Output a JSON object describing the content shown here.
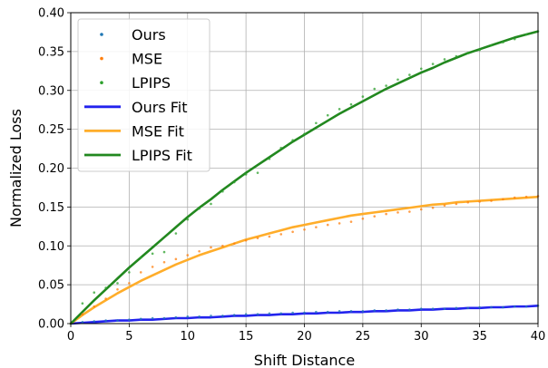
{
  "chart_data": {
    "type": "scatter",
    "xlabel": "Shift Distance",
    "ylabel": "Normalized Loss",
    "xlim": [
      0,
      40
    ],
    "ylim": [
      0,
      0.4
    ],
    "xticks": [
      0,
      5,
      10,
      15,
      20,
      25,
      30,
      35,
      40
    ],
    "yticks": [
      0.0,
      0.05,
      0.1,
      0.15,
      0.2,
      0.25,
      0.3,
      0.35,
      0.4
    ],
    "xtick_labels": [
      "0",
      "5",
      "10",
      "15",
      "20",
      "25",
      "30",
      "35",
      "40"
    ],
    "ytick_labels": [
      "0.00",
      "0.05",
      "0.10",
      "0.15",
      "0.20",
      "0.25",
      "0.30",
      "0.35",
      "0.40"
    ],
    "grid": true,
    "legend_position": "top-left",
    "x": [
      0,
      1,
      2,
      3,
      4,
      5,
      6,
      7,
      8,
      9,
      10,
      11,
      12,
      13,
      14,
      15,
      16,
      17,
      18,
      19,
      20,
      21,
      22,
      23,
      24,
      25,
      26,
      27,
      28,
      29,
      30,
      31,
      32,
      33,
      34,
      35,
      36,
      37,
      38,
      39,
      40
    ],
    "series": [
      {
        "name": "Ours",
        "kind": "points",
        "color": "#1f77b4",
        "values": [
          0.0,
          0.002,
          0.003,
          0.004,
          0.004,
          0.005,
          0.006,
          0.007,
          0.007,
          0.008,
          0.009,
          0.009,
          0.01,
          0.01,
          0.011,
          0.012,
          0.012,
          0.013,
          0.013,
          0.014,
          0.014,
          0.015,
          0.015,
          0.016,
          0.016,
          0.016,
          0.017,
          0.017,
          0.018,
          0.018,
          0.019,
          0.019,
          0.019,
          0.02,
          0.02,
          0.021,
          0.021,
          0.021,
          0.022,
          0.022,
          0.023
        ]
      },
      {
        "name": "MSE",
        "kind": "points",
        "color": "#ff7f0e",
        "values": [
          0.0,
          0.012,
          0.022,
          0.032,
          0.044,
          0.052,
          0.066,
          0.073,
          0.079,
          0.083,
          0.088,
          0.093,
          0.098,
          0.1,
          0.103,
          0.107,
          0.11,
          0.112,
          0.115,
          0.118,
          0.121,
          0.124,
          0.127,
          0.129,
          0.131,
          0.135,
          0.138,
          0.141,
          0.143,
          0.144,
          0.147,
          0.149,
          0.152,
          0.154,
          0.156,
          0.157,
          0.158,
          0.16,
          0.162,
          0.163,
          0.164
        ]
      },
      {
        "name": "LPIPS",
        "kind": "points",
        "color": "#2ca02c",
        "values": [
          0.0,
          0.026,
          0.04,
          0.046,
          0.052,
          0.066,
          0.085,
          0.09,
          0.092,
          0.116,
          0.134,
          0.148,
          0.154,
          0.17,
          0.182,
          0.192,
          0.194,
          0.212,
          0.226,
          0.236,
          0.244,
          0.258,
          0.268,
          0.276,
          0.282,
          0.292,
          0.302,
          0.306,
          0.314,
          0.32,
          0.328,
          0.334,
          0.34,
          0.344,
          0.348,
          0.352,
          0.358,
          0.362,
          0.366,
          0.372,
          0.376
        ]
      },
      {
        "name": "Ours Fit",
        "kind": "line",
        "color": "#2222ee",
        "values": [
          0.0,
          0.001,
          0.002,
          0.003,
          0.004,
          0.004,
          0.005,
          0.005,
          0.006,
          0.007,
          0.007,
          0.008,
          0.008,
          0.009,
          0.01,
          0.01,
          0.011,
          0.011,
          0.012,
          0.012,
          0.013,
          0.013,
          0.014,
          0.014,
          0.015,
          0.015,
          0.016,
          0.016,
          0.017,
          0.017,
          0.018,
          0.018,
          0.019,
          0.019,
          0.02,
          0.02,
          0.021,
          0.021,
          0.022,
          0.022,
          0.023
        ]
      },
      {
        "name": "MSE Fit",
        "kind": "line",
        "color": "#ffad2a",
        "values": [
          0.0,
          0.011,
          0.021,
          0.03,
          0.039,
          0.047,
          0.055,
          0.062,
          0.069,
          0.076,
          0.082,
          0.088,
          0.093,
          0.098,
          0.103,
          0.108,
          0.112,
          0.116,
          0.12,
          0.124,
          0.127,
          0.13,
          0.133,
          0.136,
          0.139,
          0.141,
          0.143,
          0.145,
          0.147,
          0.149,
          0.151,
          0.153,
          0.154,
          0.156,
          0.157,
          0.158,
          0.159,
          0.16,
          0.161,
          0.162,
          0.163
        ]
      },
      {
        "name": "LPIPS Fit",
        "kind": "line",
        "color": "#22881f",
        "values": [
          0.0,
          0.015,
          0.03,
          0.044,
          0.058,
          0.072,
          0.085,
          0.098,
          0.111,
          0.124,
          0.137,
          0.149,
          0.16,
          0.172,
          0.183,
          0.194,
          0.204,
          0.214,
          0.224,
          0.234,
          0.243,
          0.252,
          0.261,
          0.27,
          0.278,
          0.286,
          0.294,
          0.302,
          0.309,
          0.316,
          0.323,
          0.329,
          0.336,
          0.342,
          0.348,
          0.353,
          0.358,
          0.363,
          0.368,
          0.372,
          0.376
        ]
      }
    ]
  }
}
